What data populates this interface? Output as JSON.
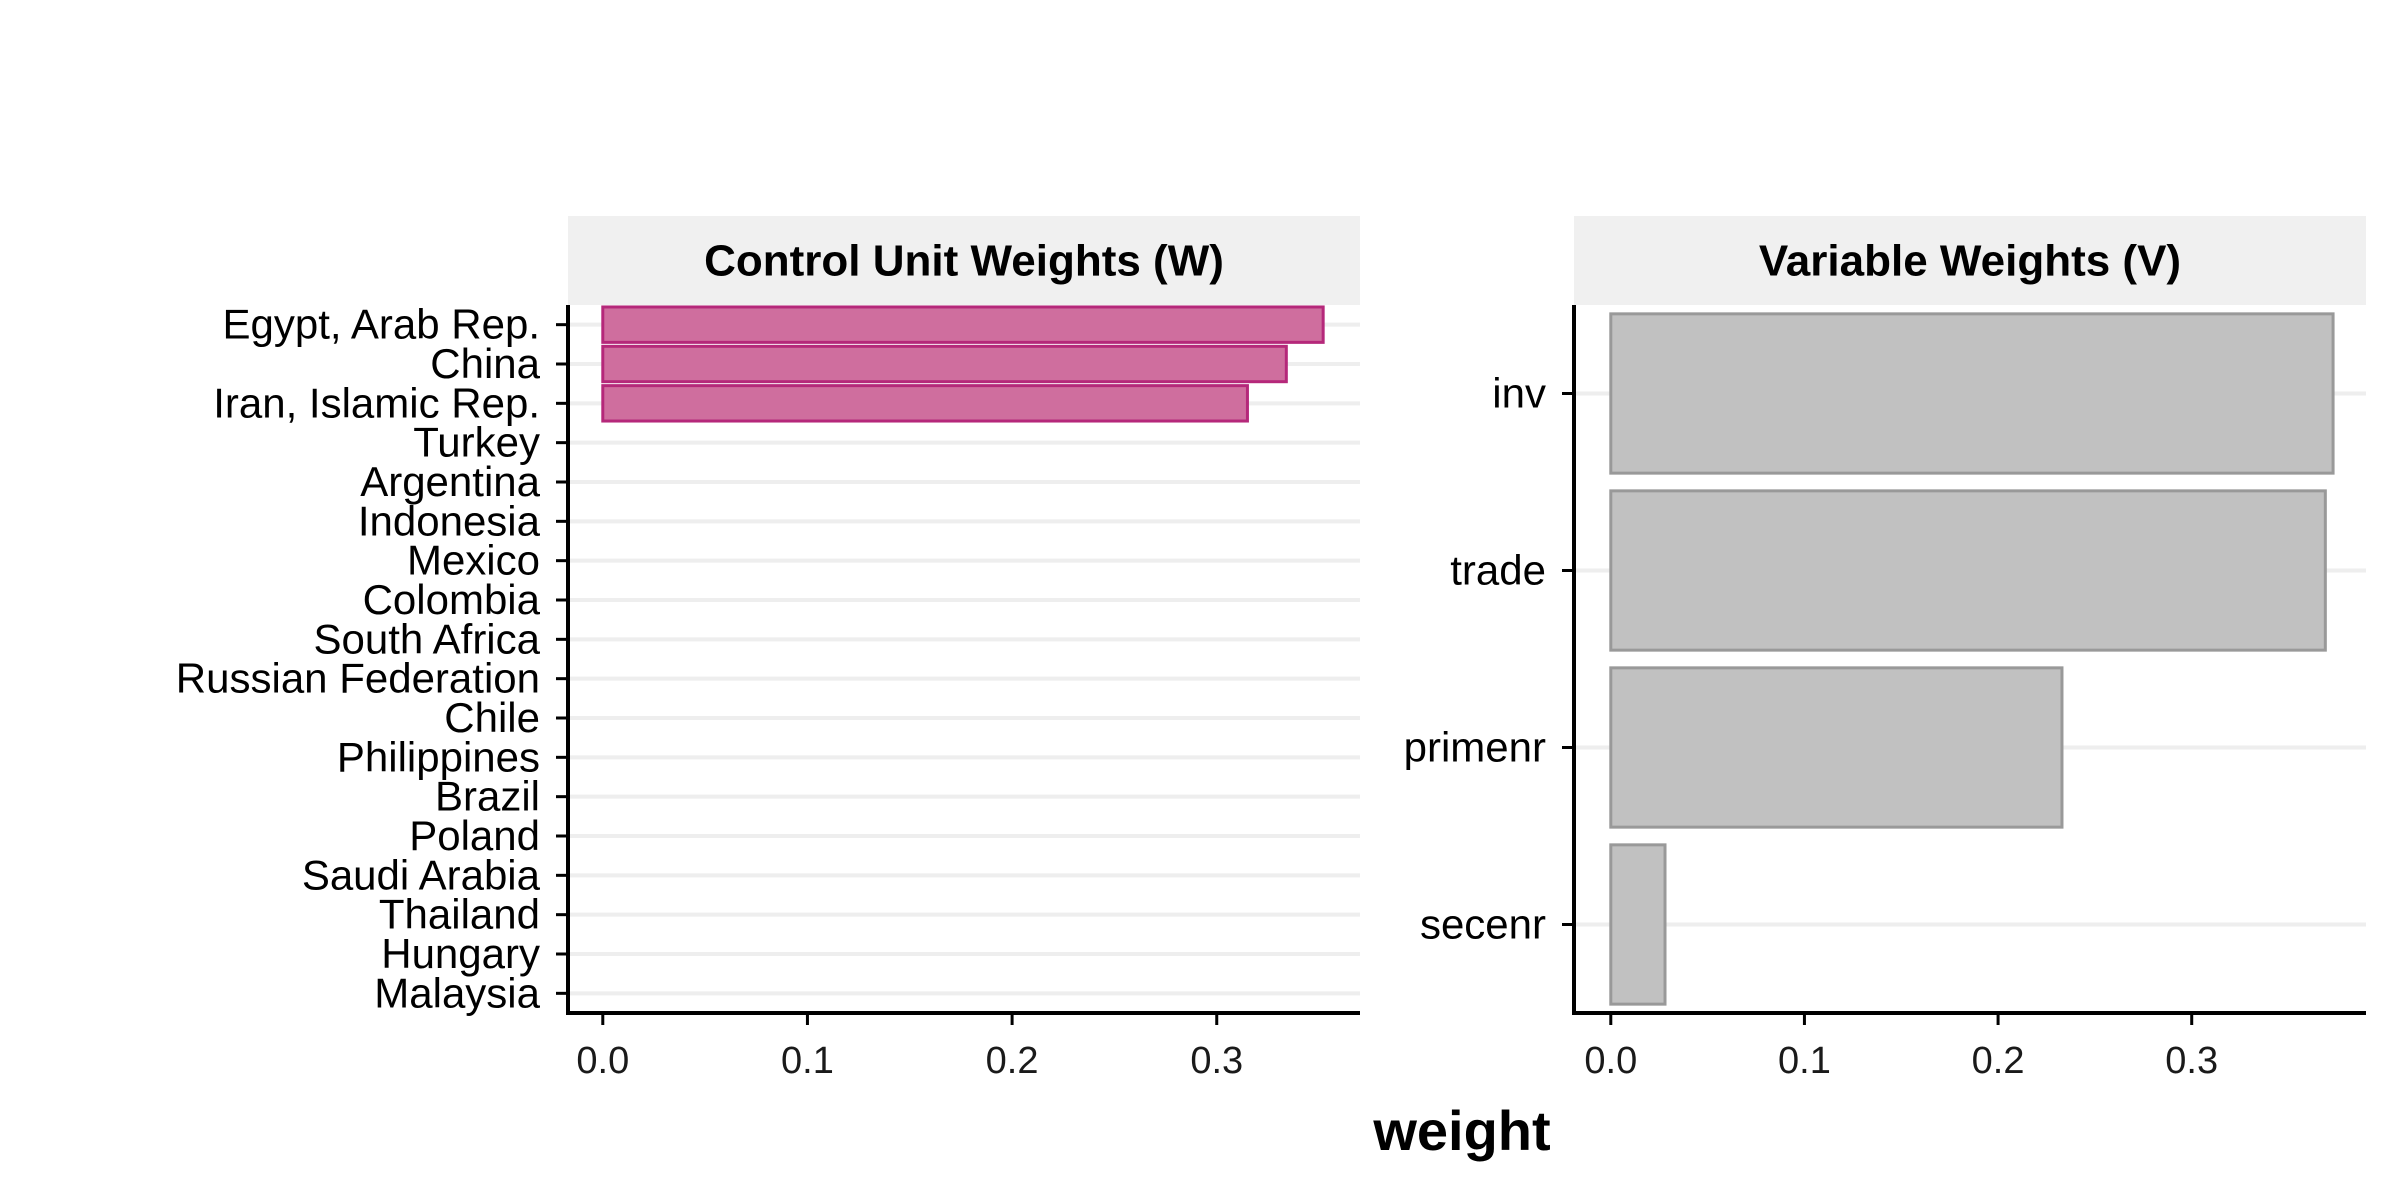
{
  "chart_data": [
    {
      "type": "bar",
      "orientation": "horizontal",
      "title": "Control Unit Weights (W)",
      "categories": [
        "Egypt, Arab Rep.",
        "China",
        "Iran, Islamic Rep.",
        "Turkey",
        "Argentina",
        "Indonesia",
        "Mexico",
        "Colombia",
        "South Africa",
        "Russian Federation",
        "Chile",
        "Philippines",
        "Brazil",
        "Poland",
        "Saudi Arabia",
        "Thailand",
        "Hungary",
        "Malaysia"
      ],
      "values": [
        0.352,
        0.334,
        0.315,
        0,
        0,
        0,
        0,
        0,
        0,
        0,
        0,
        0,
        0,
        0,
        0,
        0,
        0,
        0
      ],
      "xlim": [
        -0.017,
        0.37
      ],
      "xticks": [
        "0.0",
        "0.1",
        "0.2",
        "0.3"
      ],
      "grid": "horizontal",
      "colors": {
        "fill": "#CC6699",
        "stroke": "#B5287A"
      }
    },
    {
      "type": "bar",
      "orientation": "horizontal",
      "title": "Variable Weights (V)",
      "categories": [
        "inv",
        "trade",
        "primenr",
        "secenr"
      ],
      "values": [
        0.373,
        0.369,
        0.233,
        0.028
      ],
      "xlim": [
        -0.019,
        0.39
      ],
      "xticks": [
        "0.0",
        "0.1",
        "0.2",
        "0.3"
      ],
      "grid": "horizontal",
      "colors": {
        "fill": "#BEBEBE",
        "stroke": "#999999"
      }
    }
  ],
  "xlabel": "weight",
  "colors": {
    "strip_background": "#F0F0F0",
    "gridline": "#EEEEEE",
    "axis": "#000000"
  }
}
